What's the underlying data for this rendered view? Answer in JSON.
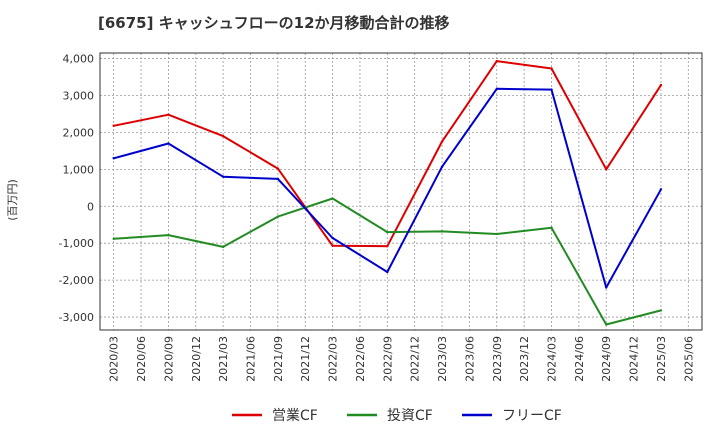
{
  "chart_data": {
    "type": "line",
    "title": "[6675]  キャッシュフローの12か月移動合計の推移",
    "ylabel": "(百万円)",
    "xlabel": "",
    "ylim": [
      -3350,
      4150
    ],
    "yticks": [
      4000,
      3000,
      2000,
      1000,
      0,
      -1000,
      -2000,
      -3000
    ],
    "ytick_labels": [
      "4,000",
      "3,000",
      "2,000",
      "1,000",
      "0",
      "-1,000",
      "-2,000",
      "-3,000"
    ],
    "categories": [
      "2020/03",
      "2020/06",
      "2020/09",
      "2020/12",
      "2021/03",
      "2021/06",
      "2021/09",
      "2021/12",
      "2022/03",
      "2022/06",
      "2022/09",
      "2022/12",
      "2023/03",
      "2023/06",
      "2023/09",
      "2023/12",
      "2024/03",
      "2024/06",
      "2024/09",
      "2024/12",
      "2025/03",
      "2025/06"
    ],
    "grid": true,
    "legend_position": "bottom",
    "series": [
      {
        "name": "営業CF",
        "color": "#dd0000",
        "values": [
          2180,
          null,
          2480,
          null,
          1900,
          null,
          1020,
          null,
          -1070,
          null,
          -1080,
          null,
          1750,
          null,
          3930,
          null,
          3730,
          null,
          1000,
          null,
          3280,
          null
        ]
      },
      {
        "name": "投資CF",
        "color": "#228b22",
        "values": [
          -880,
          null,
          -780,
          null,
          -1100,
          null,
          -280,
          null,
          210,
          null,
          -700,
          null,
          -680,
          null,
          -750,
          null,
          -580,
          null,
          -3200,
          null,
          -2820,
          null
        ]
      },
      {
        "name": "フリーCF",
        "color": "#0000cc",
        "values": [
          1300,
          null,
          1700,
          null,
          800,
          null,
          740,
          null,
          -860,
          null,
          -1780,
          null,
          1070,
          null,
          3180,
          null,
          3160,
          null,
          -2200,
          null,
          460,
          null
        ]
      }
    ]
  }
}
